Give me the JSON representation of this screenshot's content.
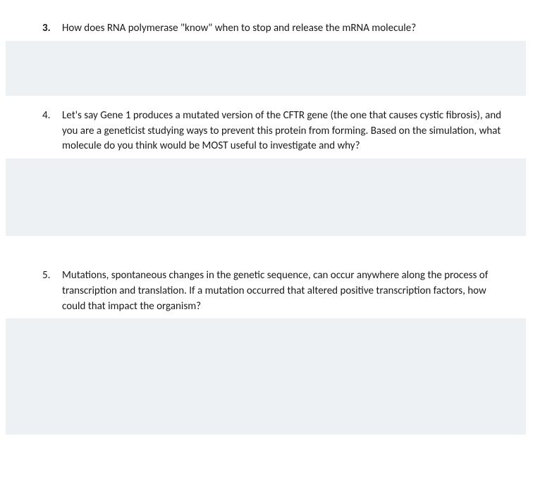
{
  "questions": [
    {
      "number": "3.",
      "number_bold": true,
      "text": "How does RNA polymerase \"know\" when to stop and release the mRNA molecule?",
      "answer_height_class": "h1"
    },
    {
      "number": "4.",
      "number_bold": false,
      "text": "Let's say Gene 1 produces a mutated version of the CFTR gene (the one that causes cystic fibrosis), and you are a geneticist studying ways to prevent this protein from forming.  Based on the simulation, what molecule do you think would be MOST useful to investigate and why?",
      "answer_height_class": "h2"
    },
    {
      "number": "5.",
      "number_bold": false,
      "text": "Mutations, spontaneous changes in the genetic sequence, can occur anywhere along the process of transcription and translation.  If a mutation occurred that altered positive transcription factors, how could that impact the organism?",
      "answer_height_class": "h3"
    }
  ],
  "style": {
    "background_color": "#ffffff",
    "answer_box_color": "#eef1f3",
    "text_color": "#1a1a1a",
    "font_family": "Calibri, Arial, sans-serif",
    "question_fontsize": 15,
    "line_height": 1.45
  }
}
